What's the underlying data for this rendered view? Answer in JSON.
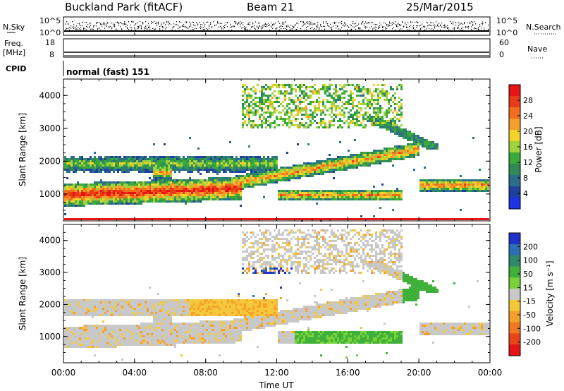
{
  "header": {
    "station": "Buckland Park (fitACF)",
    "beam": "Beam 21",
    "date": "25/Mar/2015"
  },
  "noise_panel": {
    "left_label": "N.Sky",
    "right_label": "N.Search",
    "left_ticks": [
      "10^5",
      "10^0"
    ],
    "right_ticks": [
      "10^5",
      "10^0"
    ]
  },
  "freq_panel": {
    "left_label_line1": "Freq.",
    "left_label_line2": "[MHz]",
    "left_ticks": [
      "18",
      "8"
    ],
    "right_label": "Nave",
    "right_ticks": [
      "60",
      "0"
    ]
  },
  "cpid_panel": {
    "label": "CPID",
    "text": "normal (fast) 151"
  },
  "x_axis": {
    "label": "Time UT",
    "tick_labels": [
      "00:00",
      "04:00",
      "08:00",
      "12:00",
      "16:00",
      "20:00",
      "00:00"
    ],
    "range_hours": [
      0,
      24
    ]
  },
  "chart_data": [
    {
      "type": "heatmap",
      "name": "power",
      "ylabel": "Slant Range [km]",
      "ylim": [
        180,
        4500
      ],
      "y_ticks": [
        1000,
        2000,
        3000,
        4000
      ],
      "colorbar": {
        "label": "Power [dB]",
        "ticks": [
          "4",
          "8",
          "12",
          "16",
          "20",
          "24",
          "28"
        ],
        "colors": [
          "#1e32e6",
          "#1e3fa0",
          "#2a6e8c",
          "#2f8a5a",
          "#3aaa3a",
          "#9fd23c",
          "#f5d22a",
          "#f5a02a",
          "#f06e1e",
          "#e83c18",
          "#e61414"
        ]
      }
    },
    {
      "type": "heatmap",
      "name": "velocity",
      "ylabel": "Slant Range [km]",
      "ylim": [
        180,
        4500
      ],
      "y_ticks": [
        1000,
        2000,
        3000,
        4000
      ],
      "colorbar": {
        "label": "Velocity [m s⁻¹]",
        "ticks": [
          "200",
          "100",
          "50",
          "15",
          "-15",
          "-50",
          "-100",
          "-200"
        ],
        "colors": [
          "#1e32c8",
          "#2e6eb4",
          "#2f8a6a",
          "#3fb03a",
          "#78d23c",
          "#c8c8c8",
          "#f5c83c",
          "#f5a02a",
          "#f07820",
          "#e84618",
          "#e61414"
        ]
      }
    }
  ]
}
